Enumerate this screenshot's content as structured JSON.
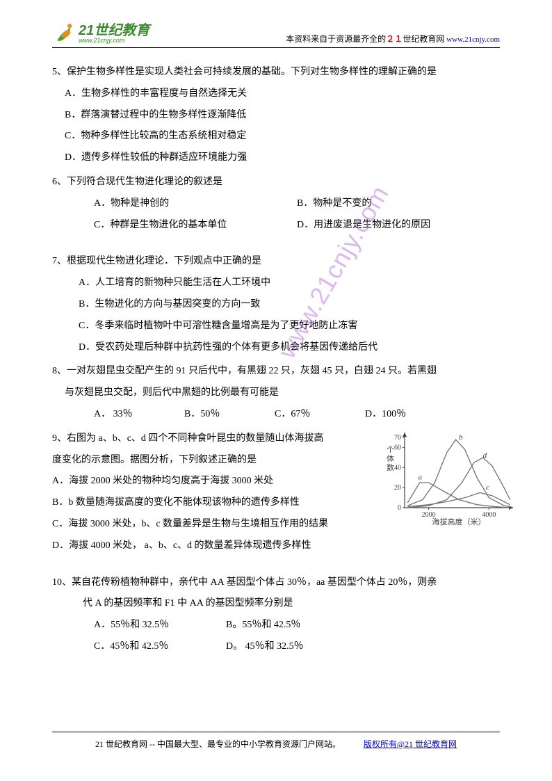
{
  "header": {
    "logo_main": "21世纪教育",
    "logo_sub": "www.21cnjy.com",
    "tagline_prefix": "本资料来自于资源最齐全的",
    "tagline_brand_red": "２１",
    "tagline_brand_rest": "世纪教育网",
    "tagline_url": "www.21cnjy.com"
  },
  "watermark": "www.21cnjy.com",
  "q5": {
    "stem": "5、保护生物多样性是实现人类社会可持续发展的基础。下列对生物多样性的理解正确的是",
    "A": "A．生物多样性的丰富程度与自然选择无关",
    "B": "B．群落演替过程中的生物多样性逐渐降低",
    "C": "C．物种多样性比较高的生态系统相对稳定",
    "D": "D．遗传多样性较低的种群适应环境能力强"
  },
  "q6": {
    "stem": "6、下列符合现代生物进化理论的叙述是",
    "A": "A．物种是神创的",
    "B": "B．物种是不变的",
    "C": "C．种群是生物进化的基本单位",
    "D": "D．用进废退是生物进化的原因"
  },
  "q7": {
    "stem": "7、根据现代生物进化理论．下列观点中正确的是",
    "A": "A．人工培育的新物种只能生活在人工环境中",
    "B": "B．生物进化的方向与基因突变的方向一致",
    "C": "C．冬季来临时植物叶中可溶性糖含量增高是为了更好地防止冻害",
    "D": "D．受农药处理后种群中抗药性强的个体有更多机会将基因传递给后代"
  },
  "q8": {
    "stem1": "8、一对灰翅昆虫交配产生的 91 只后代中，有黑翅 22 只，灰翅 45 只，白翅 24 只。若黑翅",
    "stem2": "与灰翅昆虫交配，则后代中黑翅的比例最有可能是",
    "A": "A． 33％",
    "B": "B．50％",
    "C": "C．67％",
    "D": "D．100％"
  },
  "q9": {
    "stem1": "9、右图为 a、b、c、d 四个不同种食叶昆虫的数量随山体海拔高",
    "stem2": "度变化的示意图。据图分析，下列叙述正确的是",
    "A": "A．海拔 2000 米处的物种均匀度高于海拔 3000 米处",
    "B": "B．b 数量随海拔高度的变化不能体现该物种的遗传多样性",
    "C": "C．海拔 3000 米处，b、c 数量差异是生物与生境相互作用的结果",
    "D": "D．海拔 4000 米处， a、b、c、d 的数量差异体现遗传多样性",
    "chart": {
      "type": "line",
      "xlabel": "海拔高度（米）",
      "ylabel": "个体数",
      "xlim": [
        1200,
        4800
      ],
      "ylim": [
        0,
        75
      ],
      "xticks": [
        2000,
        4000
      ],
      "yticks": [
        0,
        20,
        40,
        60,
        70
      ],
      "series": [
        {
          "name": "a",
          "label_pos": [
            1650,
            28
          ],
          "points": [
            [
              1300,
              5
            ],
            [
              1700,
              25
            ],
            [
              2000,
              25
            ],
            [
              2400,
              18
            ],
            [
              3000,
              8
            ],
            [
              3600,
              3
            ],
            [
              4200,
              1
            ],
            [
              4700,
              0
            ]
          ]
        },
        {
          "name": "b",
          "label_pos": [
            3000,
            68
          ],
          "points": [
            [
              1300,
              2
            ],
            [
              1800,
              8
            ],
            [
              2200,
              25
            ],
            [
              2600,
              55
            ],
            [
              2900,
              68
            ],
            [
              3200,
              58
            ],
            [
              3600,
              30
            ],
            [
              4000,
              10
            ],
            [
              4500,
              2
            ],
            [
              4700,
              1
            ]
          ]
        },
        {
          "name": "c",
          "label_pos": [
            3900,
            18
          ],
          "points": [
            [
              1300,
              1
            ],
            [
              2000,
              3
            ],
            [
              2600,
              6
            ],
            [
              3200,
              10
            ],
            [
              3700,
              15
            ],
            [
              4100,
              12
            ],
            [
              4500,
              6
            ],
            [
              4700,
              3
            ]
          ]
        },
        {
          "name": "d",
          "label_pos": [
            3800,
            50
          ],
          "points": [
            [
              1300,
              0
            ],
            [
              2000,
              2
            ],
            [
              2600,
              8
            ],
            [
              3100,
              25
            ],
            [
              3500,
              45
            ],
            [
              3800,
              50
            ],
            [
              4100,
              42
            ],
            [
              4500,
              20
            ],
            [
              4700,
              8
            ]
          ]
        }
      ],
      "line_color": "#707070",
      "axis_color": "#404040",
      "font_size": 11
    }
  },
  "q10": {
    "stem1": "10、某自花传粉植物种群中，亲代中 AA 基因型个体占 30％，aa 基因型个体占 20％，则亲",
    "stem2": "代 A 的基因频率和 F1 中 AA 的基因型频率分别是",
    "A": "A．55％和 32.5％",
    "B": "B。55％和 42.5％",
    "C": "C．45％和 42.5％",
    "D": "D。 45％和 32.5％"
  },
  "footer": {
    "text": "21 世纪教育网 -- 中国最大型、最专业的中小学教育资源门户网站。",
    "copyright": "版权所有@21 世纪教育网"
  }
}
